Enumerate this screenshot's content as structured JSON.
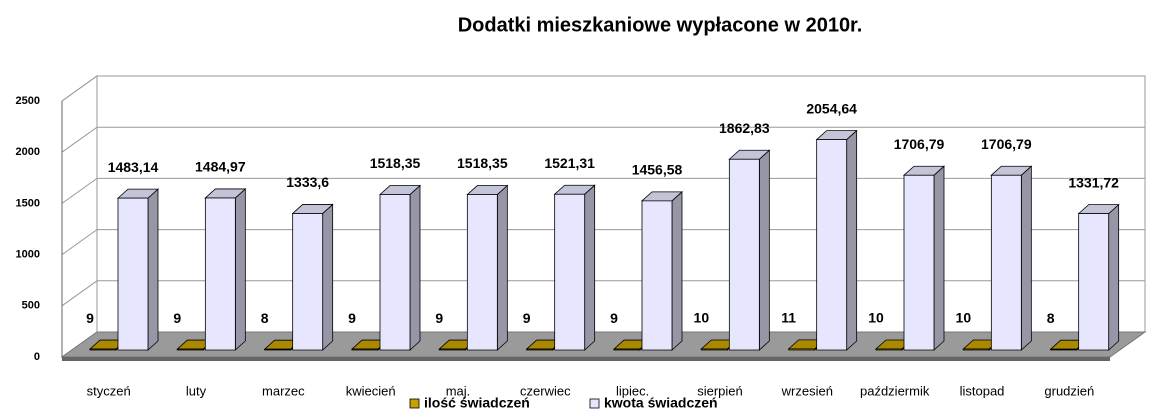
{
  "chart_data": {
    "type": "bar3d",
    "title": "Dodatki  mieszkaniowe  wypłacone w 2010r.",
    "categories": [
      "styczeń",
      "luty",
      "marzec",
      "kwiecień",
      "maj.",
      "czerwiec",
      "lipiec.",
      "sierpień",
      "wrzesień",
      "paździermik",
      "listopad",
      "grudzień"
    ],
    "series": [
      {
        "name": "ilość świadczeń",
        "color": "#c8a000",
        "values": [
          9,
          9,
          8,
          9,
          9,
          9,
          9,
          10,
          11,
          10,
          10,
          8
        ]
      },
      {
        "name": "kwota świadczeń",
        "color": "#e6e6ff",
        "values": [
          1483.14,
          1484.97,
          1333.6,
          1518.35,
          1518.35,
          1521.31,
          1456.58,
          1862.83,
          2054.64,
          1706.79,
          1706.79,
          1331.72
        ],
        "value_labels": [
          "1483,14",
          "1484,97",
          "1333,6",
          "1518,35",
          "1518,35",
          "1521,31",
          "1456,58",
          "1862,83",
          "2054,64",
          "1706,79",
          "1706,79",
          "1331,72"
        ]
      }
    ],
    "ylim": [
      0,
      2500
    ],
    "yticks": [
      0,
      500,
      1000,
      1500,
      2000,
      2500
    ],
    "grid": true,
    "legend": "bottom"
  }
}
